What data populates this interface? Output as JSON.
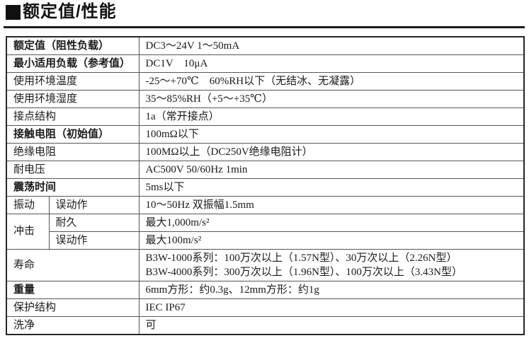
{
  "title": {
    "marker_icon": "black-square-bullet",
    "text": "额定值/性能"
  },
  "colors": {
    "label_bg": "#d9d9d9",
    "border_inner": "#565656",
    "border_outer": "#262626",
    "rule": "#1c1c1c"
  },
  "table": {
    "rows": [
      {
        "label": "额定值（阻性负载）",
        "bold": true,
        "sub": null,
        "value": [
          "DC3～24V 1～50mA"
        ]
      },
      {
        "label": "最小适用负载（参考值）",
        "bold": true,
        "sub": null,
        "value": [
          "DC1V　10μA"
        ]
      },
      {
        "label": "使用环境温度",
        "bold": false,
        "sub": null,
        "value": [
          "-25～+70℃　60%RH以下（无结冰、无凝露）"
        ]
      },
      {
        "label": "使用环境湿度",
        "bold": false,
        "sub": null,
        "value": [
          "35～85%RH（+5～+35℃）"
        ]
      },
      {
        "label": "接点结构",
        "bold": false,
        "sub": null,
        "value": [
          "1a（常开接点）"
        ]
      },
      {
        "label": "接触电阻（初始值）",
        "bold": true,
        "sub": null,
        "value": [
          "100mΩ以下"
        ]
      },
      {
        "label": "绝缘电阻",
        "bold": false,
        "sub": null,
        "value": [
          "100MΩ以上（DC250V绝缘电阻计）"
        ]
      },
      {
        "label": "耐电压",
        "bold": false,
        "sub": null,
        "value": [
          "AC500V 50/60Hz 1min"
        ]
      },
      {
        "label": "震荡时间",
        "bold": true,
        "sub": null,
        "value": [
          "5ms以下"
        ]
      },
      {
        "label": "振动",
        "bold": false,
        "sub": "误动作",
        "value": [
          "10～50Hz 双振幅1.5mm"
        ]
      },
      {
        "label": "冲击",
        "label_rowspan": 2,
        "bold": false,
        "sub": "耐久",
        "value": [
          "最大1,000m/s²"
        ]
      },
      {
        "label": null,
        "bold": false,
        "sub": "误动作",
        "value": [
          "最大100m/s²"
        ]
      },
      {
        "label": "寿命",
        "bold": false,
        "sub": null,
        "value": [
          "B3W-1000系列：100万次以上（1.57N型）、30万次以上（2.26N型）",
          "B3W-4000系列：300万次以上（1.96N型）、100万次以上（3.43N型）"
        ]
      },
      {
        "label": "重量",
        "bold": true,
        "sub": null,
        "value": [
          "6mm方形：约0.3g、12mm方形：约1g"
        ]
      },
      {
        "label": "保护结构",
        "bold": false,
        "sub": null,
        "value": [
          "IEC IP67"
        ]
      },
      {
        "label": "洗净",
        "bold": false,
        "sub": null,
        "value": [
          "可"
        ]
      }
    ]
  }
}
